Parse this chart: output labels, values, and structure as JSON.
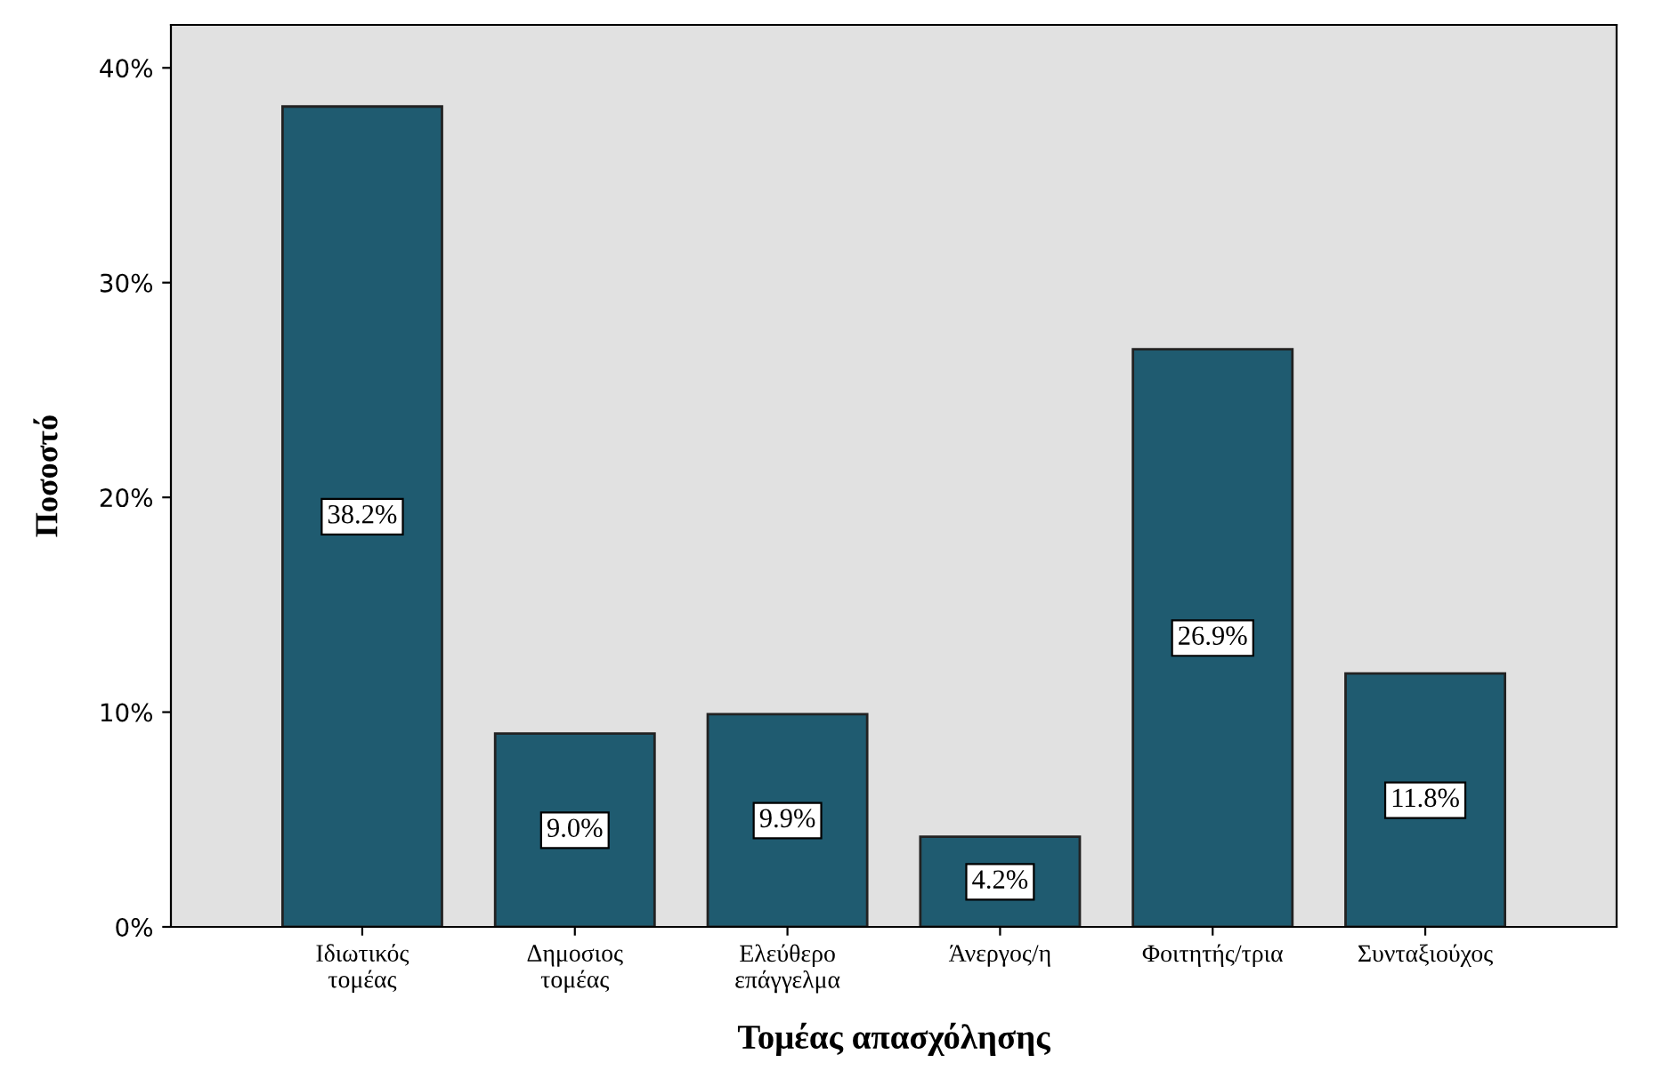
{
  "chart_data": {
    "type": "bar",
    "xlabel": "Τομέας απασχόλησης",
    "ylabel": "Ποσοστό",
    "categories": [
      "Ιδιωτικός\nτομέας",
      "Δημοσιος\nτομέας",
      "Ελεύθερο\nεπάγγελμα",
      "Άνεργος/η",
      "Φοιτητής/τρια",
      "Συνταξιούχος"
    ],
    "values": [
      38.2,
      9.0,
      9.9,
      4.2,
      26.9,
      11.8
    ],
    "value_labels": [
      "38.2%",
      "9.0%",
      "9.9%",
      "4.2%",
      "26.9%",
      "11.8%"
    ],
    "color": "#1f5b70",
    "ylim": [
      0,
      42
    ],
    "yticks": [
      {
        "value": 0,
        "label": "0%"
      },
      {
        "value": 10,
        "label": "10%"
      },
      {
        "value": 20,
        "label": "20%"
      },
      {
        "value": 30,
        "label": "30%"
      },
      {
        "value": 40,
        "label": "40%"
      }
    ],
    "grid": false,
    "legend": false
  }
}
